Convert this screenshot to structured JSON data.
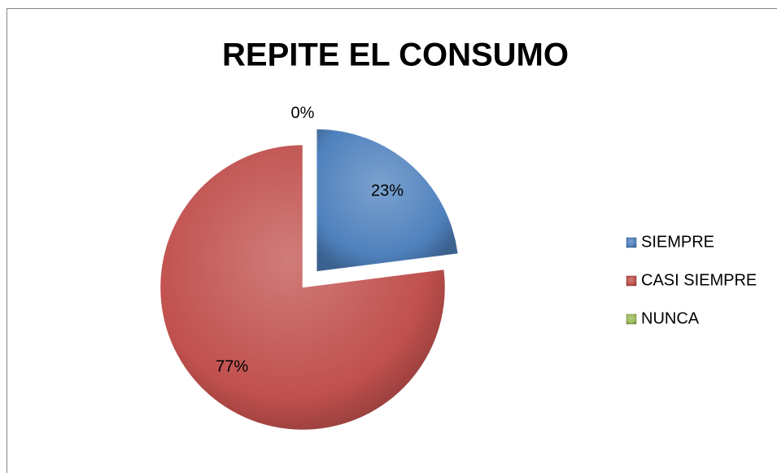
{
  "chart_data": {
    "type": "pie",
    "title": "REPITE EL CONSUMO",
    "categories": [
      "SIEMPRE",
      "CASI SIEMPRE",
      "NUNCA"
    ],
    "values": [
      23,
      77,
      0
    ],
    "value_labels": [
      "23%",
      "77%",
      "0%"
    ],
    "colors": [
      "#4f81bd",
      "#c0504d",
      "#9bbb59"
    ],
    "legend": "right"
  }
}
